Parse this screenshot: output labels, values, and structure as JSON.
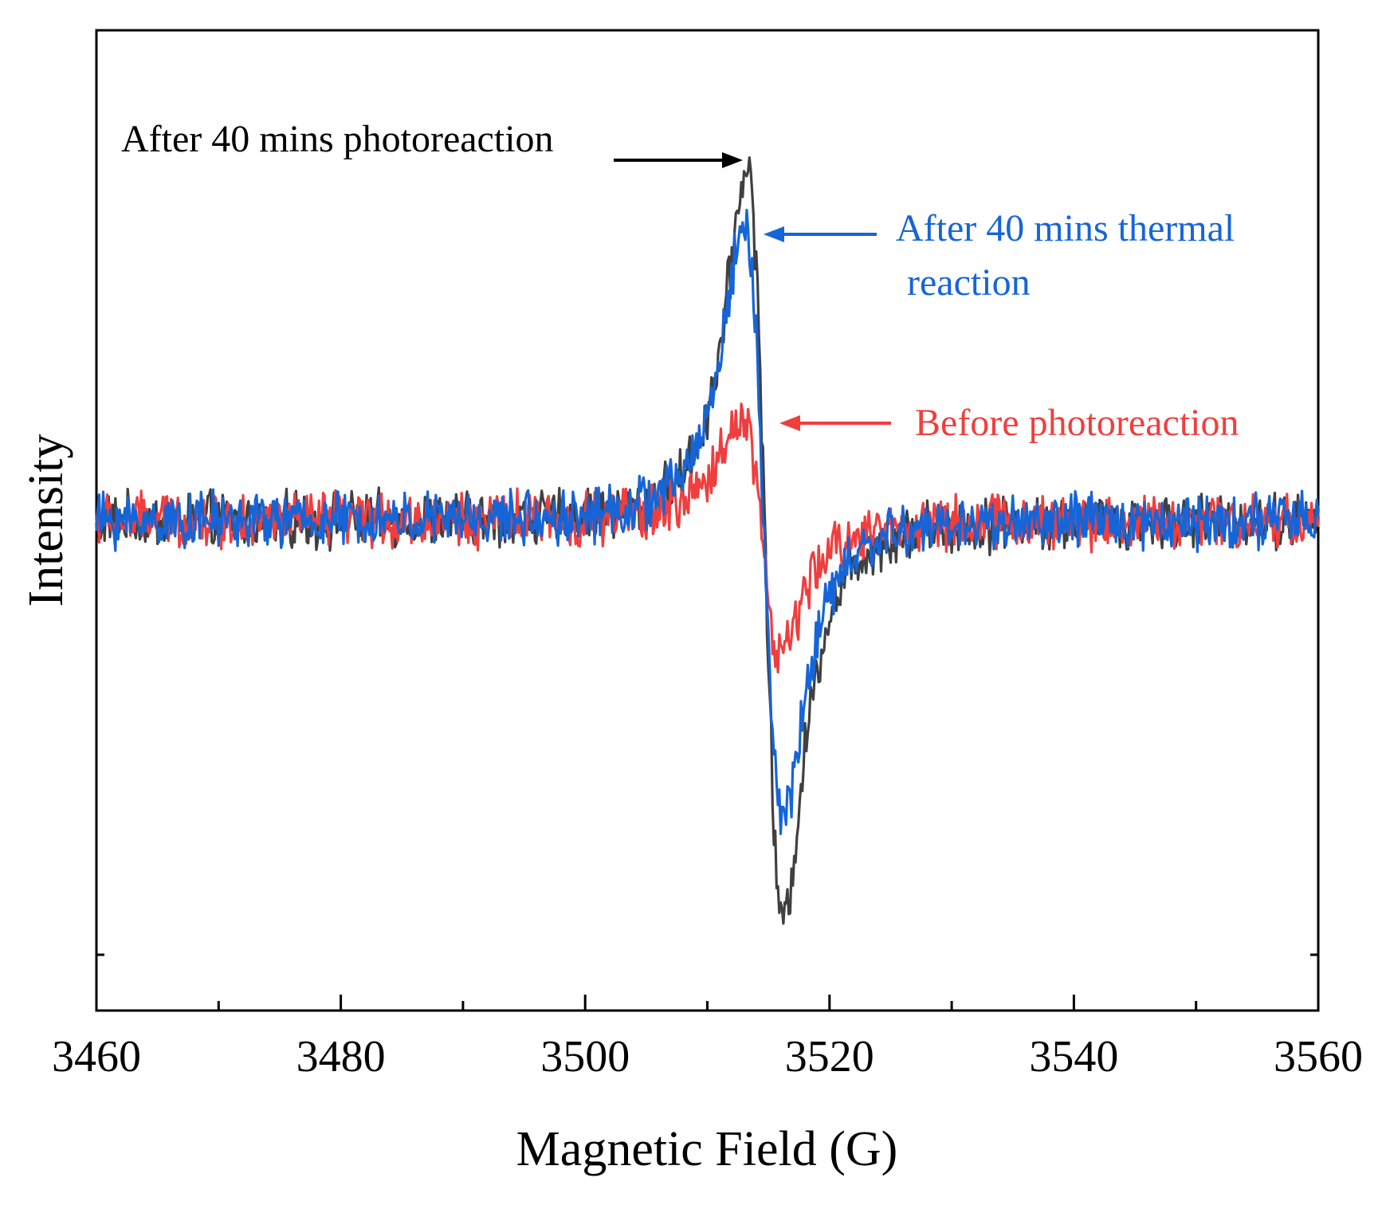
{
  "chart_data": {
    "type": "line",
    "title": "",
    "xlabel": "Magnetic Field (G)",
    "ylabel": "Intensity",
    "xlim": [
      3460,
      3560
    ],
    "ylim": [
      -1.0,
      1.0
    ],
    "xticks": [
      3460,
      3480,
      3500,
      3520,
      3540,
      3560
    ],
    "xtick_labels": [
      "3460",
      "3480",
      "3500",
      "3520",
      "3540",
      "3560"
    ],
    "grid": false,
    "y_tick_labels_shown": false,
    "series": [
      {
        "name": "After 40 mins photoreaction",
        "color": "#404040",
        "peak_x": 3513.2,
        "peak_y": 0.74,
        "trough_x": 3516.2,
        "trough_y": -0.84,
        "baseline": 0.0,
        "noise_amplitude": 0.045
      },
      {
        "name": "After 40 mins thermal reaction",
        "color": "#1565d8",
        "peak_x": 3513.0,
        "peak_y": 0.62,
        "trough_x": 3516.2,
        "trough_y": -0.62,
        "baseline": 0.0,
        "noise_amplitude": 0.045
      },
      {
        "name": "Before photoreaction",
        "color": "#f03e3e",
        "peak_x": 3512.8,
        "peak_y": 0.22,
        "trough_x": 3516.0,
        "trough_y": -0.28,
        "baseline": 0.0,
        "noise_amplitude": 0.045
      }
    ],
    "annotations": [
      {
        "text": "After 40 mins photoreaction",
        "color": "#000000",
        "arrow_color": "#000000",
        "points_to_series": "After 40 mins photoreaction"
      },
      {
        "text_lines": [
          "After 40 mins thermal",
          "reaction"
        ],
        "color": "#1565d8",
        "arrow_color": "#1565d8",
        "points_to_series": "After 40 mins thermal reaction"
      },
      {
        "text": "Before photoreaction",
        "color": "#f03e3e",
        "arrow_color": "#f03e3e",
        "points_to_series": "Before photoreaction"
      }
    ]
  }
}
